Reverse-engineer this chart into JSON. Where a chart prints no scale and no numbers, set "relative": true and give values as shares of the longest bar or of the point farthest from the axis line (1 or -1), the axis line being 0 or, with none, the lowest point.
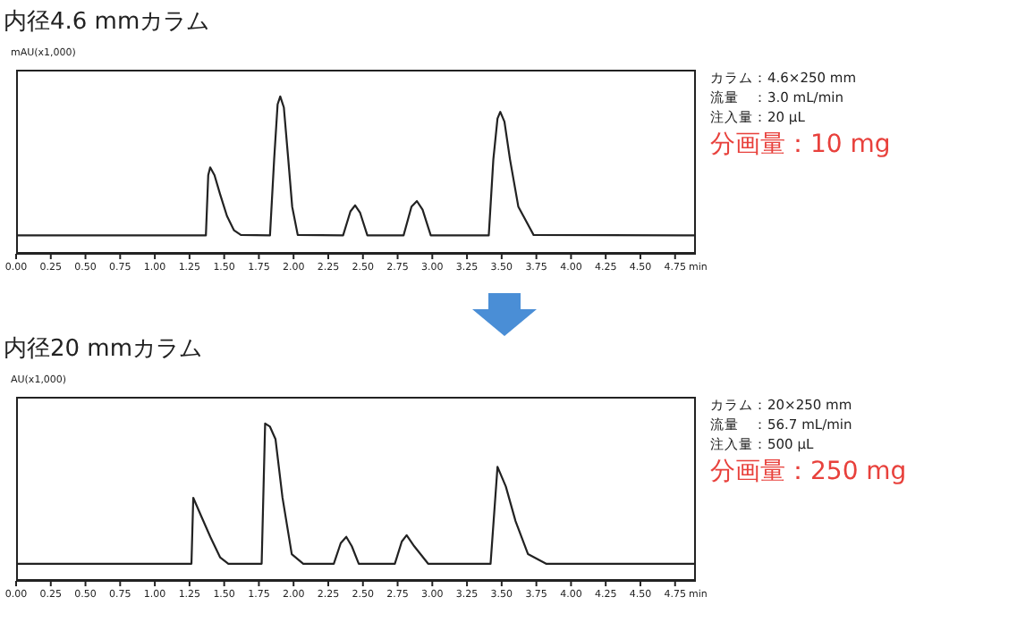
{
  "chart_data": [
    {
      "type": "line",
      "title": "内径4.6 mmカラム",
      "xlabel": "min",
      "ylabel": "mAU(x1,000)",
      "relative": true,
      "color": "#222222",
      "x": [
        0,
        1.368,
        1.385,
        1.399,
        1.43,
        1.47,
        1.52,
        1.57,
        1.62,
        1.83,
        1.86,
        1.885,
        1.904,
        1.93,
        1.96,
        1.99,
        2.03,
        2.357,
        2.41,
        2.444,
        2.48,
        2.532,
        2.793,
        2.85,
        2.889,
        2.93,
        2.989,
        3.407,
        3.44,
        3.47,
        3.49,
        3.52,
        3.56,
        3.62,
        3.73,
        4.9
      ],
      "values": [
        0.117,
        0.117,
        0.5,
        0.549,
        0.5,
        0.38,
        0.24,
        0.15,
        0.12,
        0.117,
        0.6,
        0.95,
        1.0,
        0.93,
        0.62,
        0.3,
        0.12,
        0.117,
        0.27,
        0.308,
        0.26,
        0.117,
        0.117,
        0.3,
        0.335,
        0.28,
        0.117,
        0.117,
        0.6,
        0.86,
        0.902,
        0.84,
        0.6,
        0.3,
        0.12,
        0.117
      ],
      "xlim": [
        0,
        4.9
      ],
      "xticks": [
        {
          "value": 0,
          "label": "0.00"
        },
        {
          "value": 0.25,
          "label": "0.25"
        },
        {
          "value": 0.5,
          "label": "0.50"
        },
        {
          "value": 0.75,
          "label": "0.75"
        },
        {
          "value": 1,
          "label": "1.00"
        },
        {
          "value": 1.25,
          "label": "1.25"
        },
        {
          "value": 1.5,
          "label": "1.50"
        },
        {
          "value": 1.75,
          "label": "1.75"
        },
        {
          "value": 2,
          "label": "2.00"
        },
        {
          "value": 2.25,
          "label": "2.25"
        },
        {
          "value": 2.5,
          "label": "2.50"
        },
        {
          "value": 2.75,
          "label": "2.75"
        },
        {
          "value": 3,
          "label": "3.00"
        },
        {
          "value": 3.25,
          "label": "3.25"
        },
        {
          "value": 3.5,
          "label": "3.50"
        },
        {
          "value": 3.75,
          "label": "3.75"
        },
        {
          "value": 4,
          "label": "4.00"
        },
        {
          "value": 4.25,
          "label": "4.25"
        },
        {
          "value": 4.5,
          "label": "4.50"
        },
        {
          "value": 4.75,
          "label": "4.75"
        }
      ],
      "annotations": [
        "カラム：4.6×250 mm",
        "流量　：3.0 mL/min",
        "注入量：20 µL",
        "分画量：10 mg"
      ]
    },
    {
      "type": "line",
      "title": "内径20 mmカラム",
      "xlabel": "min",
      "ylabel": "AU(x1,000)",
      "relative": true,
      "color": "#222222",
      "x": [
        0,
        1.264,
        1.277,
        1.33,
        1.4,
        1.47,
        1.53,
        1.77,
        1.795,
        1.83,
        1.87,
        1.92,
        1.987,
        2.07,
        2.29,
        2.34,
        2.38,
        2.42,
        2.47,
        2.73,
        2.78,
        2.815,
        2.87,
        2.97,
        3.42,
        3.47,
        3.53,
        3.6,
        3.69,
        3.82,
        4.9
      ],
      "values": [
        0.109,
        0.109,
        0.528,
        0.42,
        0.28,
        0.15,
        0.109,
        0.109,
        1.0,
        0.98,
        0.9,
        0.53,
        0.17,
        0.109,
        0.109,
        0.24,
        0.28,
        0.22,
        0.109,
        0.109,
        0.25,
        0.29,
        0.22,
        0.109,
        0.109,
        0.725,
        0.6,
        0.38,
        0.17,
        0.109,
        0.109
      ],
      "xlim": [
        0,
        4.9
      ],
      "xticks": [
        {
          "value": 0,
          "label": "0.00"
        },
        {
          "value": 0.25,
          "label": "0.25"
        },
        {
          "value": 0.5,
          "label": "0.50"
        },
        {
          "value": 0.75,
          "label": "0.75"
        },
        {
          "value": 1,
          "label": "1.00"
        },
        {
          "value": 1.25,
          "label": "1.25"
        },
        {
          "value": 1.5,
          "label": "1.50"
        },
        {
          "value": 1.75,
          "label": "1.75"
        },
        {
          "value": 2,
          "label": "2.00"
        },
        {
          "value": 2.25,
          "label": "2.25"
        },
        {
          "value": 2.5,
          "label": "2.50"
        },
        {
          "value": 2.75,
          "label": "2.75"
        },
        {
          "value": 3,
          "label": "3.00"
        },
        {
          "value": 3.25,
          "label": "3.25"
        },
        {
          "value": 3.5,
          "label": "3.50"
        },
        {
          "value": 3.75,
          "label": "3.75"
        },
        {
          "value": 4,
          "label": "4.00"
        },
        {
          "value": 4.25,
          "label": "4.25"
        },
        {
          "value": 4.5,
          "label": "4.50"
        },
        {
          "value": 4.75,
          "label": "4.75"
        }
      ],
      "annotations": [
        "カラム：20×250 mm",
        "流量　：56.7 mL/min",
        "注入量：500 µL",
        "分画量：250 mg"
      ]
    }
  ]
}
